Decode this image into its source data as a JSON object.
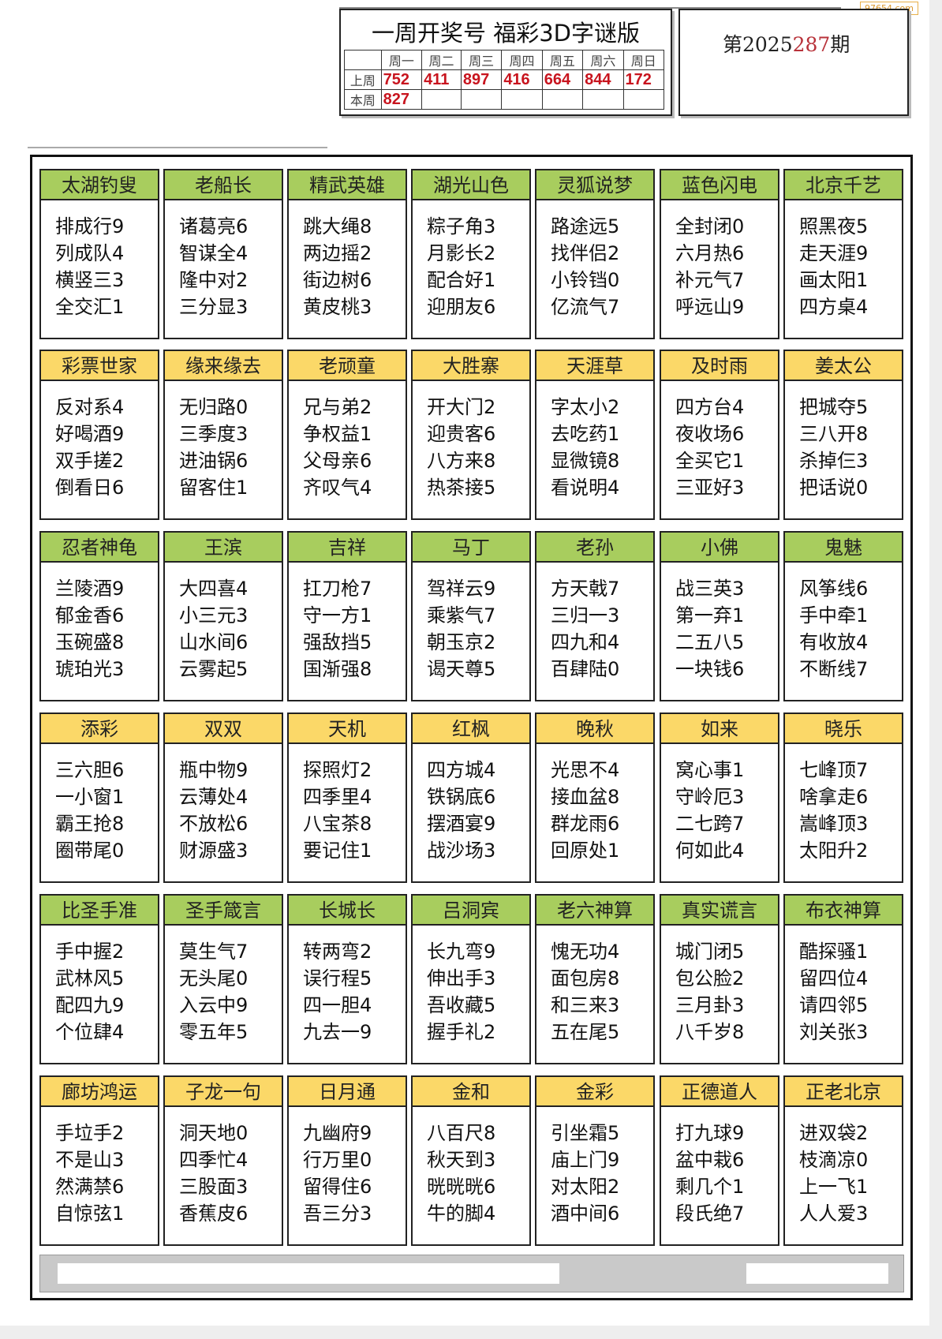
{
  "watermark": "97654.com",
  "header": {
    "title": "一周开奖号 福彩3D字谜版",
    "days": [
      "周一",
      "周二",
      "周三",
      "周四",
      "周五",
      "周六",
      "周日"
    ],
    "last_week_label": "上周",
    "this_week_label": "本周",
    "last_week": [
      "752",
      "411",
      "897",
      "416",
      "664",
      "844",
      "172"
    ],
    "this_week": [
      "827",
      "",
      "",
      "",
      "",
      "",
      ""
    ]
  },
  "issue": {
    "prefix": "第2025",
    "number": "287",
    "suffix": "期",
    "number_color": "#b8323a"
  },
  "colors": {
    "green": "#a8cd5e",
    "yellow": "#fbd868",
    "red": "#c8141e"
  },
  "rows": [
    [
      {
        "title": "太湖钓叟",
        "lines": [
          "排成行9",
          "列成队4",
          "横竖三3",
          "全交汇1"
        ]
      },
      {
        "title": "老船长",
        "lines": [
          "诸葛亮6",
          "智谋全4",
          "隆中对2",
          "三分显3"
        ]
      },
      {
        "title": "精武英雄",
        "lines": [
          "跳大绳8",
          "两边摇2",
          "街边树6",
          "黄皮桃3"
        ]
      },
      {
        "title": "湖光山色",
        "lines": [
          "粽子角3",
          "月影长2",
          "配合好1",
          "迎朋友6"
        ]
      },
      {
        "title": "灵狐说梦",
        "lines": [
          "路途远5",
          "找伴侣2",
          "小铃铛0",
          "亿流气7"
        ]
      },
      {
        "title": "蓝色闪电",
        "lines": [
          "全封闭0",
          "六月热6",
          "补元气7",
          "呼远山9"
        ]
      },
      {
        "title": "北京千艺",
        "lines": [
          "照黑夜5",
          "走天涯9",
          "画太阳1",
          "四方桌4"
        ]
      }
    ],
    [
      {
        "title": "彩票世家",
        "lines": [
          "反对系4",
          "好喝酒9",
          "双手搓2",
          "倒看日6"
        ]
      },
      {
        "title": "缘来缘去",
        "lines": [
          "无归路0",
          "三季度3",
          "进油锅6",
          "留客住1"
        ]
      },
      {
        "title": "老顽童",
        "lines": [
          "兄与弟2",
          "争权益1",
          "父母亲6",
          "齐叹气4"
        ]
      },
      {
        "title": "大胜寨",
        "lines": [
          "开大门2",
          "迎贵客6",
          "八方来8",
          "热茶接5"
        ]
      },
      {
        "title": "天涯草",
        "lines": [
          "字太小2",
          "去吃药1",
          "显微镜8",
          "看说明4"
        ]
      },
      {
        "title": "及时雨",
        "lines": [
          "四方台4",
          "夜收场6",
          "全买它1",
          "三亚好3"
        ]
      },
      {
        "title": "姜太公",
        "lines": [
          "把城夺5",
          "三八开8",
          "杀掉仨3",
          "把话说0"
        ]
      }
    ],
    [
      {
        "title": "忍者神龟",
        "lines": [
          "兰陵酒9",
          "郁金香6",
          "玉碗盛8",
          "琥珀光3"
        ]
      },
      {
        "title": "王滨",
        "lines": [
          "大四喜4",
          "小三元3",
          "山水间6",
          "云雾起5"
        ]
      },
      {
        "title": "吉祥",
        "lines": [
          "扛刀枪7",
          "守一方1",
          "强敌挡5",
          "国渐强8"
        ]
      },
      {
        "title": "马丁",
        "lines": [
          "驾祥云9",
          "乘紫气7",
          "朝玉京2",
          "谒天尊5"
        ]
      },
      {
        "title": "老孙",
        "lines": [
          "方天戟7",
          "三归一3",
          "四九和4",
          "百肆陆0"
        ]
      },
      {
        "title": "小佛",
        "lines": [
          "战三英3",
          "第一弃1",
          "二五八5",
          "一块钱6"
        ]
      },
      {
        "title": "鬼魅",
        "lines": [
          "风筝线6",
          "手中牵1",
          "有收放4",
          "不断线7"
        ]
      }
    ],
    [
      {
        "title": "添彩",
        "lines": [
          "三六胆6",
          "一小窗1",
          "霸王抢8",
          "圈带尾0"
        ]
      },
      {
        "title": "双双",
        "lines": [
          "瓶中物9",
          "云薄处4",
          "不放松6",
          "财源盛3"
        ]
      },
      {
        "title": "天机",
        "lines": [
          "探照灯2",
          "四季里4",
          "八宝茶8",
          "要记住1"
        ]
      },
      {
        "title": "红枫",
        "lines": [
          "四方城4",
          "铁锅底6",
          "摆酒宴9",
          "战沙场3"
        ]
      },
      {
        "title": "晚秋",
        "lines": [
          "光思不4",
          "接血盆8",
          "群龙雨6",
          "回原处1"
        ]
      },
      {
        "title": "如来",
        "lines": [
          "窝心事1",
          "守岭厄3",
          "二七跨7",
          "何如此4"
        ]
      },
      {
        "title": "晓乐",
        "lines": [
          "七峰顶7",
          "啥拿走6",
          "嵩峰顶3",
          "太阳升2"
        ]
      }
    ],
    [
      {
        "title": "比圣手准",
        "lines": [
          "手中握2",
          "武林风5",
          "配四九9",
          "个位肆4"
        ]
      },
      {
        "title": "圣手箴言",
        "lines": [
          "莫生气7",
          "无头尾0",
          "入云中9",
          "零五年5"
        ]
      },
      {
        "title": "长城长",
        "lines": [
          "转两弯2",
          "误行程5",
          "四一胆4",
          "九去一9"
        ]
      },
      {
        "title": "吕洞宾",
        "lines": [
          "长九弯9",
          "伸出手3",
          "吾收藏5",
          "握手礼2"
        ]
      },
      {
        "title": "老六神算",
        "lines": [
          "愧无功4",
          "面包房8",
          "和三来3",
          "五在尾5"
        ]
      },
      {
        "title": "真实谎言",
        "lines": [
          "城门闭5",
          "包公脸2",
          "三月卦3",
          "八千岁8"
        ]
      },
      {
        "title": "布衣神算",
        "lines": [
          "酷探骚1",
          "留四位4",
          "请四邻5",
          "刘关张3"
        ]
      }
    ],
    [
      {
        "title": "廊坊鸿运",
        "lines": [
          "手垃手2",
          "不是山3",
          "然满禁6",
          "自惊弦1"
        ]
      },
      {
        "title": "子龙一句",
        "lines": [
          "洞天地0",
          "四季忙4",
          "三股面3",
          "香蕉皮6"
        ]
      },
      {
        "title": "日月通",
        "lines": [
          "九幽府9",
          "行万里0",
          "留得住6",
          "吾三分3"
        ]
      },
      {
        "title": "金和",
        "lines": [
          "八百尺8",
          "秋天到3",
          "晄晄晄6",
          "牛的脚4"
        ]
      },
      {
        "title": "金彩",
        "lines": [
          "引坐霜5",
          "庙上门9",
          "对太阳2",
          "酒中间6"
        ]
      },
      {
        "title": "正德道人",
        "lines": [
          "打九球9",
          "盆中栽6",
          "剩几个1",
          "段氏绝7"
        ]
      },
      {
        "title": "正老北京",
        "lines": [
          "进双袋2",
          "枝滴凉0",
          "上一飞1",
          "人人爱3"
        ]
      }
    ]
  ]
}
